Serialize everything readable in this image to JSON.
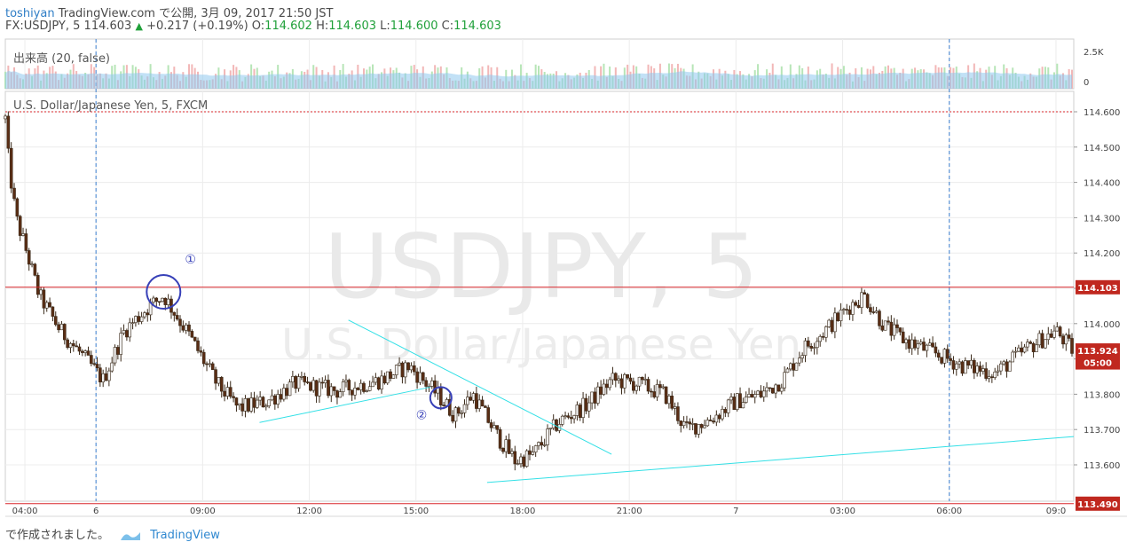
{
  "header": {
    "user": "toshiyan",
    "published": "TradingView.com で公開, 3月 09, 2017 21:50 JST",
    "symbol": "FX:USDJPY, 5",
    "last": "114.603",
    "change": "+0.217 (+0.19%)",
    "open_label": "O:",
    "open": "114.602",
    "high_label": "H:",
    "high": "114.603",
    "low_label": "L:",
    "low": "114.600",
    "close_label": "C:",
    "close": "114.603"
  },
  "volume_pane": {
    "label": "出来高 (20, false)",
    "ticks": [
      "2.5K",
      "0"
    ]
  },
  "main_pane": {
    "series_label": "U.S. Dollar/Japanese Yen, 5, FXCM",
    "watermark_line1": "USDJPY, 5",
    "watermark_line2": "U.S. Dollar/Japanese Yen",
    "annotation_1": "①",
    "annotation_2": "②"
  },
  "footer": {
    "made_with": "で作成されました。",
    "brand": "TradingView"
  },
  "colors": {
    "up_candle": "#f2f2f2",
    "down_candle": "#5a2d14",
    "resistance_line": "#d9262a",
    "trend_line": "#33e0e6",
    "circle": "#3740b8",
    "last_price_tag": "#c0281f"
  },
  "chart_data": {
    "type": "candlestick",
    "title": "USDJPY, 5",
    "xlabel": "",
    "ylabel": "",
    "ylim": [
      113.48,
      114.66
    ],
    "y_ticks": [
      "114.600",
      "114.500",
      "114.400",
      "114.300",
      "114.200",
      "114.100",
      "114.000",
      "113.900",
      "113.800",
      "113.700",
      "113.600"
    ],
    "x_tick_labels": [
      "04:00",
      "6",
      "09:00",
      "12:00",
      "15:00",
      "18:00",
      "21:00",
      "7",
      "03:00",
      "06:00",
      "09:0"
    ],
    "horizontal_lines": [
      {
        "price": 114.103,
        "label": "114.103",
        "style": "solid"
      },
      {
        "price": 114.6,
        "label": "",
        "style": "dotted"
      },
      {
        "price": 113.49,
        "label": "113.490",
        "style": "solid"
      }
    ],
    "price_tags": [
      {
        "price": 113.924,
        "label": "113.924"
      },
      {
        "price": 113.89,
        "label": "05:00"
      }
    ],
    "close_path": [
      {
        "hour": 3.45,
        "close": 114.58
      },
      {
        "hour": 3.55,
        "close": 114.45
      },
      {
        "hour": 3.75,
        "close": 114.3
      },
      {
        "hour": 4.0,
        "close": 114.22
      },
      {
        "hour": 4.4,
        "close": 114.08
      },
      {
        "hour": 5.0,
        "close": 113.98
      },
      {
        "hour": 5.7,
        "close": 113.9
      },
      {
        "hour": 6.2,
        "close": 113.84
      },
      {
        "hour": 6.8,
        "close": 113.98
      },
      {
        "hour": 7.4,
        "close": 114.04
      },
      {
        "hour": 7.9,
        "close": 114.08
      },
      {
        "hour": 8.6,
        "close": 113.97
      },
      {
        "hour": 9.4,
        "close": 113.83
      },
      {
        "hour": 10.0,
        "close": 113.76
      },
      {
        "hour": 10.8,
        "close": 113.78
      },
      {
        "hour": 11.6,
        "close": 113.83
      },
      {
        "hour": 12.8,
        "close": 113.81
      },
      {
        "hour": 14.0,
        "close": 113.84
      },
      {
        "hour": 14.8,
        "close": 113.88
      },
      {
        "hour": 15.6,
        "close": 113.8
      },
      {
        "hour": 16.1,
        "close": 113.74
      },
      {
        "hour": 16.6,
        "close": 113.8
      },
      {
        "hour": 17.3,
        "close": 113.68
      },
      {
        "hour": 17.8,
        "close": 113.61
      },
      {
        "hour": 18.3,
        "close": 113.63
      },
      {
        "hour": 19.0,
        "close": 113.72
      },
      {
        "hour": 19.8,
        "close": 113.77
      },
      {
        "hour": 20.5,
        "close": 113.84
      },
      {
        "hour": 21.2,
        "close": 113.83
      },
      {
        "hour": 22.0,
        "close": 113.8
      },
      {
        "hour": 22.6,
        "close": 113.7
      },
      {
        "hour": 23.3,
        "close": 113.73
      },
      {
        "hour": 24.0,
        "close": 113.78
      },
      {
        "hour": 24.7,
        "close": 113.8
      },
      {
        "hour": 25.3,
        "close": 113.84
      },
      {
        "hour": 25.9,
        "close": 113.93
      },
      {
        "hour": 26.5,
        "close": 113.98
      },
      {
        "hour": 27.2,
        "close": 114.05
      },
      {
        "hour": 27.6,
        "close": 114.08
      },
      {
        "hour": 28.2,
        "close": 113.99
      },
      {
        "hour": 28.8,
        "close": 113.95
      },
      {
        "hour": 29.5,
        "close": 113.92
      },
      {
        "hour": 30.4,
        "close": 113.88
      },
      {
        "hour": 31.3,
        "close": 113.86
      },
      {
        "hour": 32.2,
        "close": 113.93
      },
      {
        "hour": 33.0,
        "close": 113.98
      },
      {
        "hour": 33.5,
        "close": 113.92
      }
    ],
    "volume_range": [
      0,
      2500
    ]
  }
}
